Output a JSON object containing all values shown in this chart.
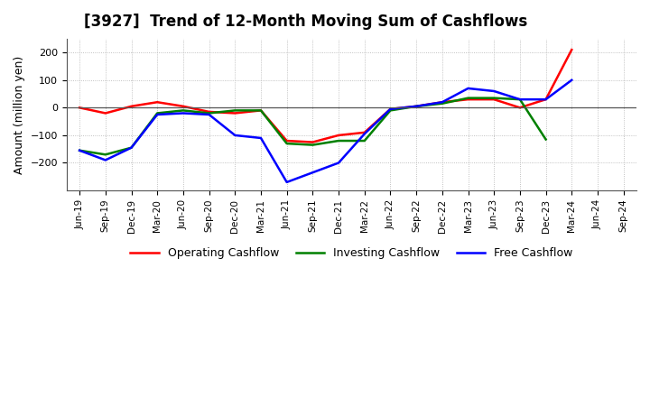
{
  "title": "[3927]  Trend of 12-Month Moving Sum of Cashflows",
  "ylabel": "Amount (million yen)",
  "xlabels": [
    "Jun-19",
    "Sep-19",
    "Dec-19",
    "Mar-20",
    "Jun-20",
    "Sep-20",
    "Dec-20",
    "Mar-21",
    "Jun-21",
    "Sep-21",
    "Dec-21",
    "Mar-22",
    "Jun-22",
    "Sep-22",
    "Dec-22",
    "Mar-23",
    "Jun-23",
    "Sep-23",
    "Dec-23",
    "Mar-24",
    "Jun-24",
    "Sep-24"
  ],
  "operating_cashflow": [
    0,
    -20,
    5,
    20,
    5,
    -15,
    -20,
    -10,
    -120,
    -125,
    -100,
    -90,
    -5,
    5,
    20,
    30,
    30,
    0,
    30,
    210,
    null,
    null
  ],
  "investing_cashflow": [
    -155,
    -170,
    -145,
    -20,
    -10,
    -20,
    -10,
    -10,
    -130,
    -135,
    -120,
    -120,
    -10,
    5,
    15,
    35,
    35,
    30,
    -115,
    null,
    null,
    null
  ],
  "free_cashflow": [
    -155,
    -190,
    -145,
    -25,
    -20,
    -25,
    -100,
    -110,
    -270,
    -235,
    -200,
    -95,
    -5,
    5,
    20,
    70,
    60,
    30,
    30,
    100,
    null,
    null
  ],
  "operating_color": "#ff0000",
  "investing_color": "#008000",
  "free_color": "#0000ff",
  "ylim": [
    -300,
    250
  ],
  "yticks": [
    -200,
    -100,
    0,
    100,
    200
  ],
  "background_color": "#ffffff",
  "grid_color": "#b0b0b0",
  "title_fontsize": 12,
  "legend_labels": [
    "Operating Cashflow",
    "Investing Cashflow",
    "Free Cashflow"
  ]
}
